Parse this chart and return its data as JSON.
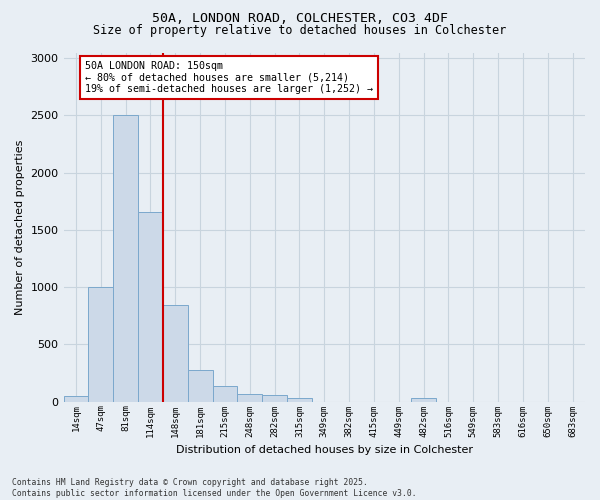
{
  "title_line1": "50A, LONDON ROAD, COLCHESTER, CO3 4DF",
  "title_line2": "Size of property relative to detached houses in Colchester",
  "xlabel": "Distribution of detached houses by size in Colchester",
  "ylabel": "Number of detached properties",
  "footer_line1": "Contains HM Land Registry data © Crown copyright and database right 2025.",
  "footer_line2": "Contains public sector information licensed under the Open Government Licence v3.0.",
  "categories": [
    "14sqm",
    "47sqm",
    "81sqm",
    "114sqm",
    "148sqm",
    "181sqm",
    "215sqm",
    "248sqm",
    "282sqm",
    "315sqm",
    "349sqm",
    "382sqm",
    "415sqm",
    "449sqm",
    "482sqm",
    "516sqm",
    "549sqm",
    "583sqm",
    "616sqm",
    "650sqm",
    "683sqm"
  ],
  "values": [
    50,
    1000,
    2500,
    1660,
    840,
    280,
    135,
    65,
    60,
    30,
    0,
    0,
    0,
    0,
    30,
    0,
    0,
    0,
    0,
    0,
    0
  ],
  "bar_color": "#ccd9e8",
  "bar_edge_color": "#7ba8cc",
  "grid_color": "#c8d4de",
  "vline_x": 3.5,
  "vline_color": "#cc0000",
  "vline_linewidth": 1.5,
  "annotation_box_text": "50A LONDON ROAD: 150sqm\n← 80% of detached houses are smaller (5,214)\n19% of semi-detached houses are larger (1,252) →",
  "annotation_box_edge_color": "#cc0000",
  "annotation_box_face_color": "white",
  "ylim": [
    0,
    3050
  ],
  "yticks": [
    0,
    500,
    1000,
    1500,
    2000,
    2500,
    3000
  ],
  "fig_bg_color": "#e8eef4",
  "plot_bg_color": "#e8eef4",
  "title_fontsize": 9.5,
  "subtitle_fontsize": 8.5
}
